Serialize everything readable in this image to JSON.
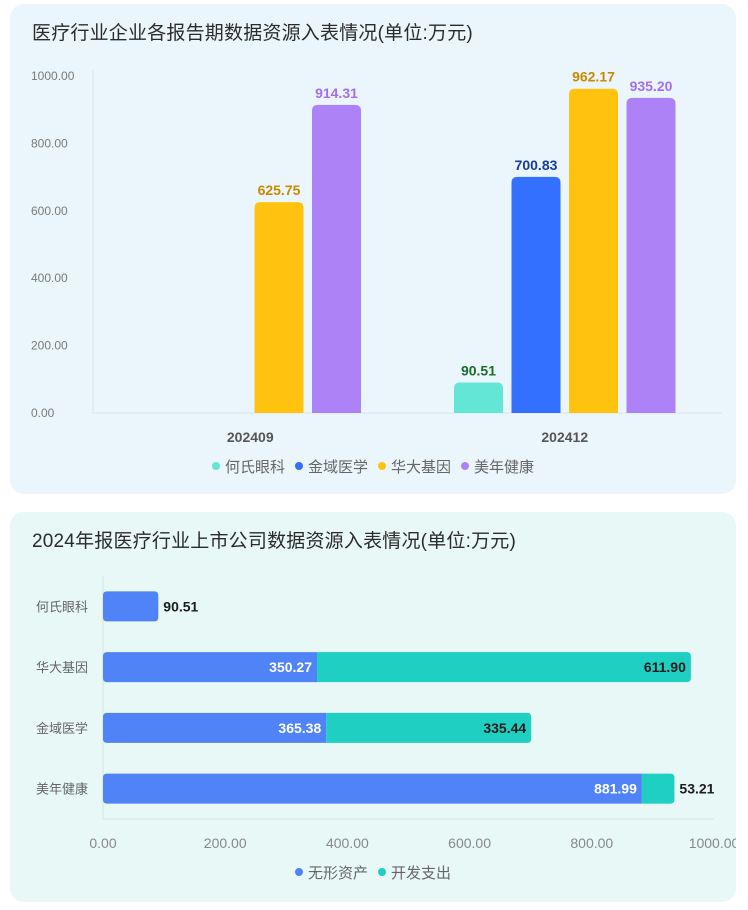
{
  "chart_data": [
    {
      "type": "bar",
      "title": "医疗行业企业各报告期数据资源入表情况(单位:万元)",
      "categories": [
        "202409",
        "202412"
      ],
      "series": [
        {
          "name": "何氏眼科",
          "values": [
            null,
            90.51
          ],
          "labels": [
            "",
            "90.51"
          ],
          "color": "#63e6d5",
          "label_color": "#1a6e2a"
        },
        {
          "name": "金域医学",
          "values": [
            null,
            700.83
          ],
          "labels": [
            "",
            "700.83"
          ],
          "color": "#3370ff",
          "label_color": "#153d99"
        },
        {
          "name": "华大基因",
          "values": [
            625.75,
            962.17
          ],
          "labels": [
            "625.75",
            "962.17"
          ],
          "color": "#ffc30f",
          "label_color": "#c98a00"
        },
        {
          "name": "美年健康",
          "values": [
            914.31,
            935.2
          ],
          "labels": [
            "914.31",
            "935.20"
          ],
          "color": "#ad82f7",
          "label_color": "#a56ef0"
        }
      ],
      "y_ticks": [
        "0.00",
        "200.00",
        "400.00",
        "600.00",
        "800.00",
        "1000.00"
      ],
      "ylim": [
        0,
        1000
      ],
      "legend_position": "bottom"
    },
    {
      "type": "bar",
      "orientation": "horizontal",
      "stacked": true,
      "title": "2024年报医疗行业上市公司数据资源入表情况(单位:万元)",
      "categories": [
        "何氏眼科",
        "华大基因",
        "金域医学",
        "美年健康"
      ],
      "series": [
        {
          "name": "无形资产",
          "values": [
            90.51,
            350.27,
            365.38,
            881.99
          ],
          "labels": [
            "90.51",
            "350.27",
            "365.38",
            "881.99"
          ],
          "color": "#4f83f7"
        },
        {
          "name": "开发支出",
          "values": [
            null,
            611.9,
            335.44,
            53.21
          ],
          "labels": [
            "",
            "611.90",
            "335.44",
            "53.21"
          ],
          "color": "#1ecfc2"
        }
      ],
      "x_ticks": [
        "0.00",
        "200.00",
        "400.00",
        "600.00",
        "800.00",
        "1000.00"
      ],
      "xlim": [
        0,
        1000
      ],
      "legend_position": "bottom"
    }
  ]
}
